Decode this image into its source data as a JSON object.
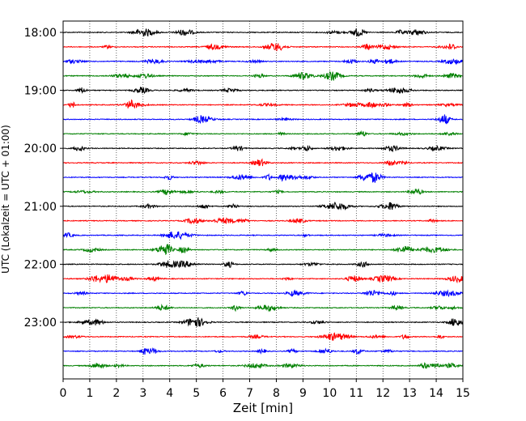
{
  "chart_data": {
    "type": "line",
    "title": "",
    "xlabel": "Zeit  [min]",
    "ylabel": "UTC (Lokalzeit = UTC + 01:00)",
    "xlim": [
      0,
      15
    ],
    "xticks": [
      0,
      1,
      2,
      3,
      4,
      5,
      6,
      7,
      8,
      9,
      10,
      11,
      12,
      13,
      14,
      15
    ],
    "xtick_labels": [
      "0",
      "1",
      "2",
      "3",
      "4",
      "5",
      "6",
      "7",
      "8",
      "9",
      "10",
      "11",
      "12",
      "13",
      "14",
      "15"
    ],
    "y_ticks": [
      {
        "label": "18:00",
        "trace_index": 0
      },
      {
        "label": "19:00",
        "trace_index": 4
      },
      {
        "label": "20:00",
        "trace_index": 8
      },
      {
        "label": "21:00",
        "trace_index": 12
      },
      {
        "label": "22:00",
        "trace_index": 16
      },
      {
        "label": "23:00",
        "trace_index": 20
      }
    ],
    "grid": {
      "x": true,
      "style": "dotted"
    },
    "trace_colors": [
      "#000000",
      "#ff0000",
      "#0000ff",
      "#008000"
    ],
    "traces": [
      {
        "start": "18:00"
      },
      {
        "start": "18:15"
      },
      {
        "start": "18:30"
      },
      {
        "start": "18:45"
      },
      {
        "start": "19:00"
      },
      {
        "start": "19:15"
      },
      {
        "start": "19:30"
      },
      {
        "start": "19:45"
      },
      {
        "start": "20:00"
      },
      {
        "start": "20:15"
      },
      {
        "start": "20:30"
      },
      {
        "start": "20:45"
      },
      {
        "start": "21:00"
      },
      {
        "start": "21:15"
      },
      {
        "start": "21:30"
      },
      {
        "start": "21:45"
      },
      {
        "start": "22:00"
      },
      {
        "start": "22:15"
      },
      {
        "start": "22:30"
      },
      {
        "start": "22:45"
      },
      {
        "start": "23:00"
      },
      {
        "start": "23:15"
      },
      {
        "start": "23:30"
      },
      {
        "start": "23:45"
      }
    ]
  }
}
